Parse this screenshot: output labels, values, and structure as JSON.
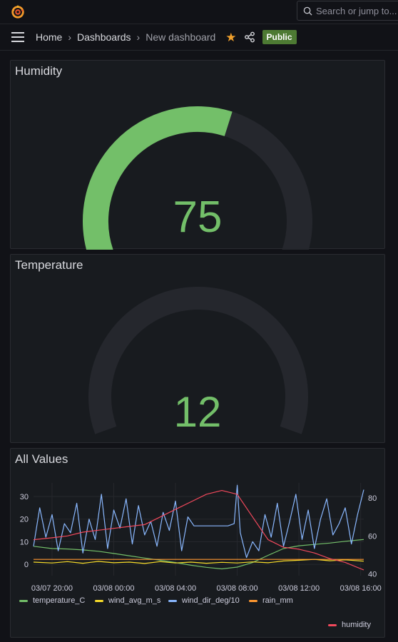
{
  "topbar": {
    "logo_icon": "grafana-logo-icon",
    "search_placeholder": "Search or jump to..."
  },
  "breadcrumb": {
    "items": [
      "Home",
      "Dashboards",
      "New dashboard"
    ],
    "badge": "Public",
    "star_color": "#f0a02c",
    "badge_color": "#4d7a33"
  },
  "panels": {
    "humidity": {
      "title": "Humidity",
      "value": 75,
      "value_text": "75",
      "fill_fraction": 0.58,
      "color": "#73bf69"
    },
    "temperature": {
      "title": "Temperature",
      "value": 12,
      "value_text": "12",
      "fill_fraction": 0.0,
      "color": "#73bf69"
    },
    "all_values": {
      "title": "All Values"
    }
  },
  "chart_data": {
    "type": "line",
    "title": "All Values",
    "x_ticks": [
      "03/07 20:00",
      "03/08 00:00",
      "03/08 04:00",
      "03/08 08:00",
      "03/08 12:00",
      "03/08 16:00"
    ],
    "left_axis": {
      "ticks": [
        "0",
        "10",
        "20",
        "30"
      ],
      "ylim": [
        -5,
        36
      ]
    },
    "right_axis": {
      "ticks": [
        "40",
        "60",
        "80"
      ],
      "ylim": [
        39,
        88
      ]
    },
    "grid": true,
    "legend": [
      {
        "name": "temperature_C",
        "color": "#73bf69"
      },
      {
        "name": "wind_avg_m_s",
        "color": "#fade2a"
      },
      {
        "name": "wind_dir_deg/10",
        "color": "#8ab8ff"
      },
      {
        "name": "rain_mm",
        "color": "#ff9830"
      },
      {
        "name": "humidity",
        "color": "#f2495c"
      }
    ],
    "series": [
      {
        "name": "temperature_C",
        "axis": "left",
        "color": "#73bf69",
        "x": [
          -1.2,
          0,
          1,
          2,
          3,
          4,
          5,
          6,
          7,
          8,
          9,
          10,
          11,
          12,
          13,
          14,
          15,
          16,
          17,
          18,
          19,
          20.2
        ],
        "y": [
          8,
          7,
          6.8,
          6.4,
          5.8,
          4.8,
          3.8,
          2.8,
          1.8,
          0.8,
          -0.4,
          -1.3,
          -2,
          -1.2,
          0.8,
          4,
          7,
          8.2,
          8.8,
          9.4,
          10.2,
          11
        ]
      },
      {
        "name": "wind_avg_m_s",
        "axis": "left",
        "color": "#fade2a",
        "x": [
          -1.2,
          0,
          1,
          2,
          3,
          4,
          5,
          6,
          7,
          8,
          9,
          10,
          11,
          12,
          13,
          14,
          15,
          16,
          17,
          18,
          19,
          20.2
        ],
        "y": [
          1,
          0.6,
          1.2,
          0.5,
          1.3,
          0.7,
          1,
          0.4,
          1.2,
          0.6,
          1,
          0.5,
          0.9,
          0.6,
          1.1,
          0.7,
          1.5,
          1.8,
          2.2,
          1.6,
          2,
          1.4
        ]
      },
      {
        "name": "wind_dir_deg/10",
        "axis": "left",
        "color": "#8ab8ff",
        "x": [
          -1.2,
          -0.8,
          -0.4,
          0,
          0.4,
          0.8,
          1.2,
          1.6,
          2,
          2.4,
          2.8,
          3.2,
          3.6,
          4,
          4.4,
          4.8,
          5.2,
          5.6,
          6,
          6.4,
          6.8,
          7.2,
          7.6,
          8,
          8.4,
          8.8,
          9.2,
          9.6,
          10,
          10.4,
          10.8,
          11,
          11.4,
          11.8,
          12,
          12.2,
          12.6,
          13,
          13.4,
          13.8,
          14.2,
          14.6,
          15,
          15.4,
          15.8,
          16.2,
          16.6,
          17,
          17.4,
          17.8,
          18.2,
          18.6,
          19,
          19.4,
          19.8,
          20.2
        ],
        "y": [
          8,
          25,
          12,
          22,
          6,
          18,
          14,
          27,
          5,
          20,
          11,
          31,
          7,
          24,
          16,
          29,
          9,
          26,
          13,
          19,
          8,
          23,
          15,
          28,
          6,
          21,
          17,
          17,
          17,
          17,
          17,
          17,
          17,
          18,
          35,
          14,
          3,
          10,
          6,
          22,
          12,
          27,
          8,
          19,
          31,
          11,
          24,
          7,
          20,
          29,
          13,
          18,
          25,
          9,
          22,
          33
        ]
      },
      {
        "name": "rain_mm",
        "axis": "left",
        "color": "#ff9830",
        "x": [
          -1.2,
          20.2
        ],
        "y": [
          2.2,
          2.2
        ]
      },
      {
        "name": "humidity",
        "axis": "right",
        "color": "#f2495c",
        "x": [
          -1.2,
          0,
          1,
          2,
          3,
          4,
          5,
          6,
          7,
          8,
          9,
          10,
          11,
          12,
          13,
          14,
          15,
          16,
          17,
          18,
          19,
          20.2
        ],
        "y": [
          58,
          59,
          60,
          62,
          63,
          64,
          65,
          66,
          70,
          74,
          78,
          82,
          84,
          82,
          70,
          58,
          54,
          53,
          51,
          48,
          46,
          42
        ]
      }
    ]
  }
}
